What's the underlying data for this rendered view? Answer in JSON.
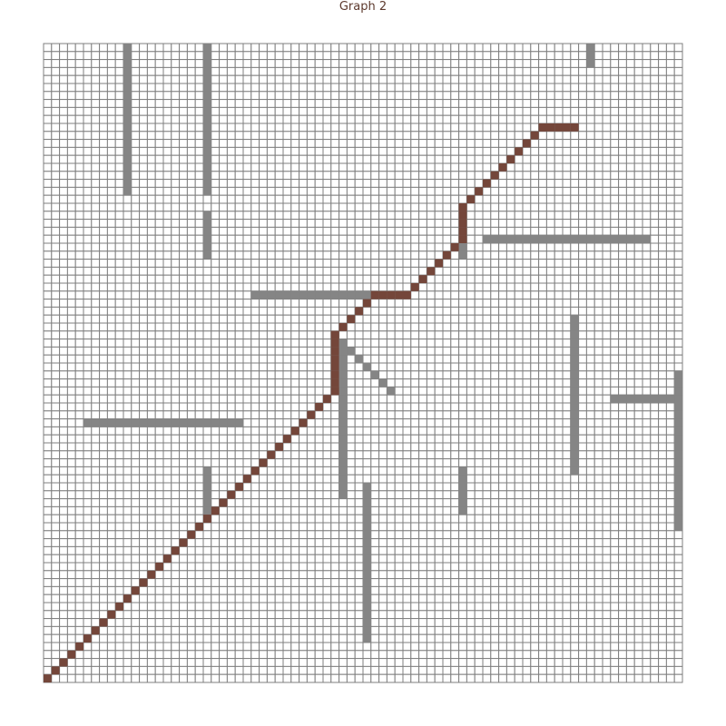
{
  "title": "Graph 2",
  "grid": {
    "cols": 80,
    "rows": 80
  },
  "colors": {
    "grid_line": "#7f7f7f",
    "cell_fill": "#ffffff",
    "wall": "#858585",
    "path": "#74463a",
    "title": "#5d3a2e"
  },
  "walls": [
    [
      [
        10,
        0
      ],
      [
        10,
        18
      ]
    ],
    [
      [
        20,
        0
      ],
      [
        20,
        18
      ]
    ],
    [
      [
        20,
        21
      ],
      [
        20,
        26
      ]
    ],
    [
      [
        68,
        0
      ],
      [
        68,
        2
      ]
    ],
    [
      [
        26,
        31
      ],
      [
        45,
        31
      ]
    ],
    [
      [
        55,
        24
      ],
      [
        75,
        24
      ]
    ],
    [
      [
        52,
        21
      ],
      [
        52,
        26
      ]
    ],
    [
      [
        37,
        37
      ],
      [
        42,
        43
      ]
    ],
    [
      [
        37,
        37
      ],
      [
        37,
        56
      ]
    ],
    [
      [
        40,
        55
      ],
      [
        40,
        74
      ]
    ],
    [
      [
        5,
        47
      ],
      [
        24,
        47
      ]
    ],
    [
      [
        20,
        53
      ],
      [
        20,
        59
      ]
    ],
    [
      [
        52,
        53
      ],
      [
        52,
        58
      ]
    ],
    [
      [
        66,
        34
      ],
      [
        66,
        53
      ]
    ],
    [
      [
        71,
        44
      ],
      [
        79,
        44
      ]
    ],
    [
      [
        79,
        41
      ],
      [
        79,
        60
      ]
    ]
  ],
  "path": [
    [
      0,
      79
    ],
    [
      20,
      59
    ],
    [
      36,
      43
    ],
    [
      36,
      36
    ],
    [
      41,
      31
    ],
    [
      45,
      31
    ],
    [
      52,
      24
    ],
    [
      52,
      20
    ],
    [
      62,
      10
    ],
    [
      66,
      10
    ]
  ]
}
